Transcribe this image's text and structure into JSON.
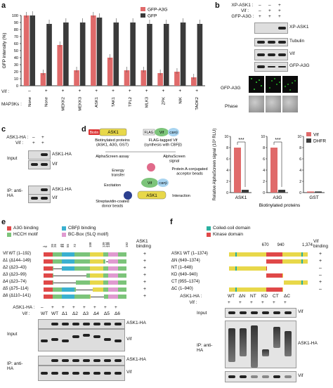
{
  "panel_a": {
    "letter": "a",
    "legend": [
      "GFP-A3G",
      "GFP"
    ],
    "colors": {
      "a3g": "#e06a6a",
      "gfp": "#3a3a3a"
    },
    "ylabel": "GFP intensity (%)",
    "yticks": [
      "0",
      "10",
      "20",
      "30",
      "40",
      "50",
      "60",
      "70",
      "80",
      "90",
      "100"
    ],
    "vif_label": "Vif :",
    "vif_states": [
      "–",
      "+",
      "+",
      "+",
      "+",
      "+",
      "+",
      "+",
      "+",
      "+",
      "+"
    ],
    "map3k_label": "MAP3Ks :",
    "chart_data": {
      "type": "bar",
      "categories": [
        "None",
        "None",
        "MEKK2",
        "MEKK3",
        "ASK1",
        "TAK1",
        "TPL2",
        "MLK3",
        "ZPK",
        "NIK",
        "TAOK2"
      ],
      "series": [
        {
          "name": "GFP-A3G",
          "values": [
            100,
            18,
            58,
            22,
            100,
            40,
            22,
            22,
            18,
            20,
            12
          ]
        },
        {
          "name": "GFP",
          "values": [
            100,
            88,
            90,
            90,
            97,
            90,
            90,
            88,
            88,
            90,
            88
          ]
        }
      ],
      "ylim": [
        0,
        100
      ]
    }
  },
  "panel_b": {
    "letter": "b",
    "rows": [
      {
        "label": "XP-ASK1 :",
        "vals": [
          "–",
          "–",
          "+"
        ]
      },
      {
        "label": "Vif :",
        "vals": [
          "–",
          "+",
          "+"
        ]
      },
      {
        "label": "GFP-A3G :",
        "vals": [
          "+",
          "+",
          "+"
        ]
      }
    ],
    "blots": [
      "XP-ASK1",
      "Tubulin",
      "Vif",
      "GFP-A3G"
    ],
    "img_labels": [
      "GFP-A3G",
      "Phase"
    ]
  },
  "panel_c": {
    "letter": "c",
    "rows": [
      {
        "label": "ASK1-HA :",
        "vals": [
          "–",
          "+"
        ]
      },
      {
        "label": "Vif :",
        "vals": [
          "+",
          "+"
        ]
      }
    ],
    "input_label": "Input",
    "ip_label": "IP: anti-HA",
    "blots": [
      "ASK1-HA",
      "Vif",
      "ASK1-HA",
      "Vif"
    ]
  },
  "panel_d": {
    "letter": "d",
    "diagram": {
      "biotin": "Biotin",
      "ask1": "ASK1",
      "flag": "FLAG",
      "vif": "Vif",
      "cbfb": "CBFβ",
      "biot_text": "Biotinylated proteins (ASK1, A3G, GST)",
      "flag_text": "FLAG-tagged Vif (synthesis with CBFβ)",
      "assay": "AlphaScreen assay",
      "signal": "AlphaScreen signal",
      "energy": "Energy transfer",
      "acceptor": "Protein A-conjugated acceptor beads",
      "excitation": "Excitation",
      "donor": "Streptavidin-coated donor beads",
      "interaction": "Interaction"
    },
    "ylabel": "Relative AlphaScreen signal (10³ RLU)",
    "xlabel": "Biotinylated proteins",
    "legend": [
      "Vif",
      "DHFR"
    ],
    "colors": {
      "vif": "#e06a6a",
      "dhfr": "#3a3a3a"
    },
    "sig": "***",
    "chart_data": [
      {
        "type": "bar",
        "categories": [
          "ASK1"
        ],
        "series": [
          {
            "name": "Vif",
            "values": [
              8.0
            ]
          },
          {
            "name": "DHFR",
            "values": [
              0.5
            ]
          }
        ],
        "ylim": [
          0,
          10
        ],
        "yticks": [
          "0",
          "2",
          "4",
          "6",
          "8",
          "10"
        ]
      },
      {
        "type": "bar",
        "categories": [
          "A3G"
        ],
        "series": [
          {
            "name": "Vif",
            "values": [
              8.0
            ]
          },
          {
            "name": "DHFR",
            "values": [
              0.5
            ]
          }
        ],
        "ylim": [
          0,
          10
        ],
        "yticks": [
          "0",
          "2",
          "4",
          "6",
          "8",
          "10"
        ]
      },
      {
        "type": "bar",
        "categories": [
          "GST"
        ],
        "series": [
          {
            "name": "Vif",
            "values": [
              0.2
            ]
          },
          {
            "name": "DHFR",
            "values": [
              0.2
            ]
          }
        ],
        "ylim": [
          0,
          10
        ],
        "yticks": [
          "0",
          "2",
          "4",
          "6",
          "8",
          "10"
        ]
      }
    ]
  },
  "panel_e": {
    "letter": "e",
    "legend": [
      "A3G binding",
      "CBFβ binding",
      "HCCH motif",
      "BC-Box (SLQ motif)"
    ],
    "positions": [
      "1",
      "5",
      "20",
      "26",
      "40",
      "44",
      "55",
      "72",
      "108",
      "139",
      "144",
      "149",
      "192"
    ],
    "binding_header": "ASK1 binding",
    "constructs": [
      {
        "name": "Vif WT (1–192)",
        "bind": "+"
      },
      {
        "name": "Δ1 (Δ144–149)",
        "bind": "+"
      },
      {
        "name": "Δ2 (Δ23–43)",
        "bind": "+"
      },
      {
        "name": "Δ3 (Δ23–99)",
        "bind": "+"
      },
      {
        "name": "Δ4 (Δ23–74)",
        "bind": "+"
      },
      {
        "name": "Δ5 (Δ75–114)",
        "bind": "+"
      },
      {
        "name": "Δ6 (Δ110–141)",
        "bind": "+"
      }
    ],
    "ask_row": {
      "label": "ASK1-HA :",
      "vals": [
        "–",
        "+",
        "+",
        "+",
        "+",
        "+",
        "+",
        "+"
      ]
    },
    "vif_row": {
      "label": "Vif :",
      "vals": [
        "WT",
        "WT",
        "Δ1",
        "Δ2",
        "Δ3",
        "Δ4",
        "Δ5",
        "Δ6"
      ]
    },
    "input_label": "Input",
    "ip_label": "IP: anti-HA",
    "blots": [
      "ASK1-HA",
      "Vif",
      "ASK1-HA",
      "Vif"
    ]
  },
  "panel_f": {
    "letter": "f",
    "legend": [
      "Coiled-coil domain",
      "Kinase domain"
    ],
    "positions": [
      "670",
      "940",
      "1,374"
    ],
    "binding_header": "Vif binding",
    "constructs": [
      {
        "name": "ASK1 WT (1–1374)",
        "bind": "+"
      },
      {
        "name": "ΔN (649–1374)",
        "bind": "+"
      },
      {
        "name": "NT (1–648)",
        "bind": "–"
      },
      {
        "name": "KD (649–940)",
        "bind": "–"
      },
      {
        "name": "CT (955–1374)",
        "bind": "+"
      },
      {
        "name": "ΔC (1–940)",
        "bind": "–"
      }
    ],
    "ask_row": {
      "label": "ASK1-HA :",
      "vals": [
        "WT",
        "ΔN",
        "NT",
        "KD",
        "CT",
        "ΔC"
      ]
    },
    "vif_row": {
      "label": "Vif :",
      "vals": [
        "+",
        "+",
        "+",
        "+",
        "+",
        "+"
      ]
    },
    "input_label": "Input",
    "ip_label": "IP: anti-HA",
    "blots": [
      "Vif",
      "ASK1-HA",
      "Vif"
    ]
  }
}
